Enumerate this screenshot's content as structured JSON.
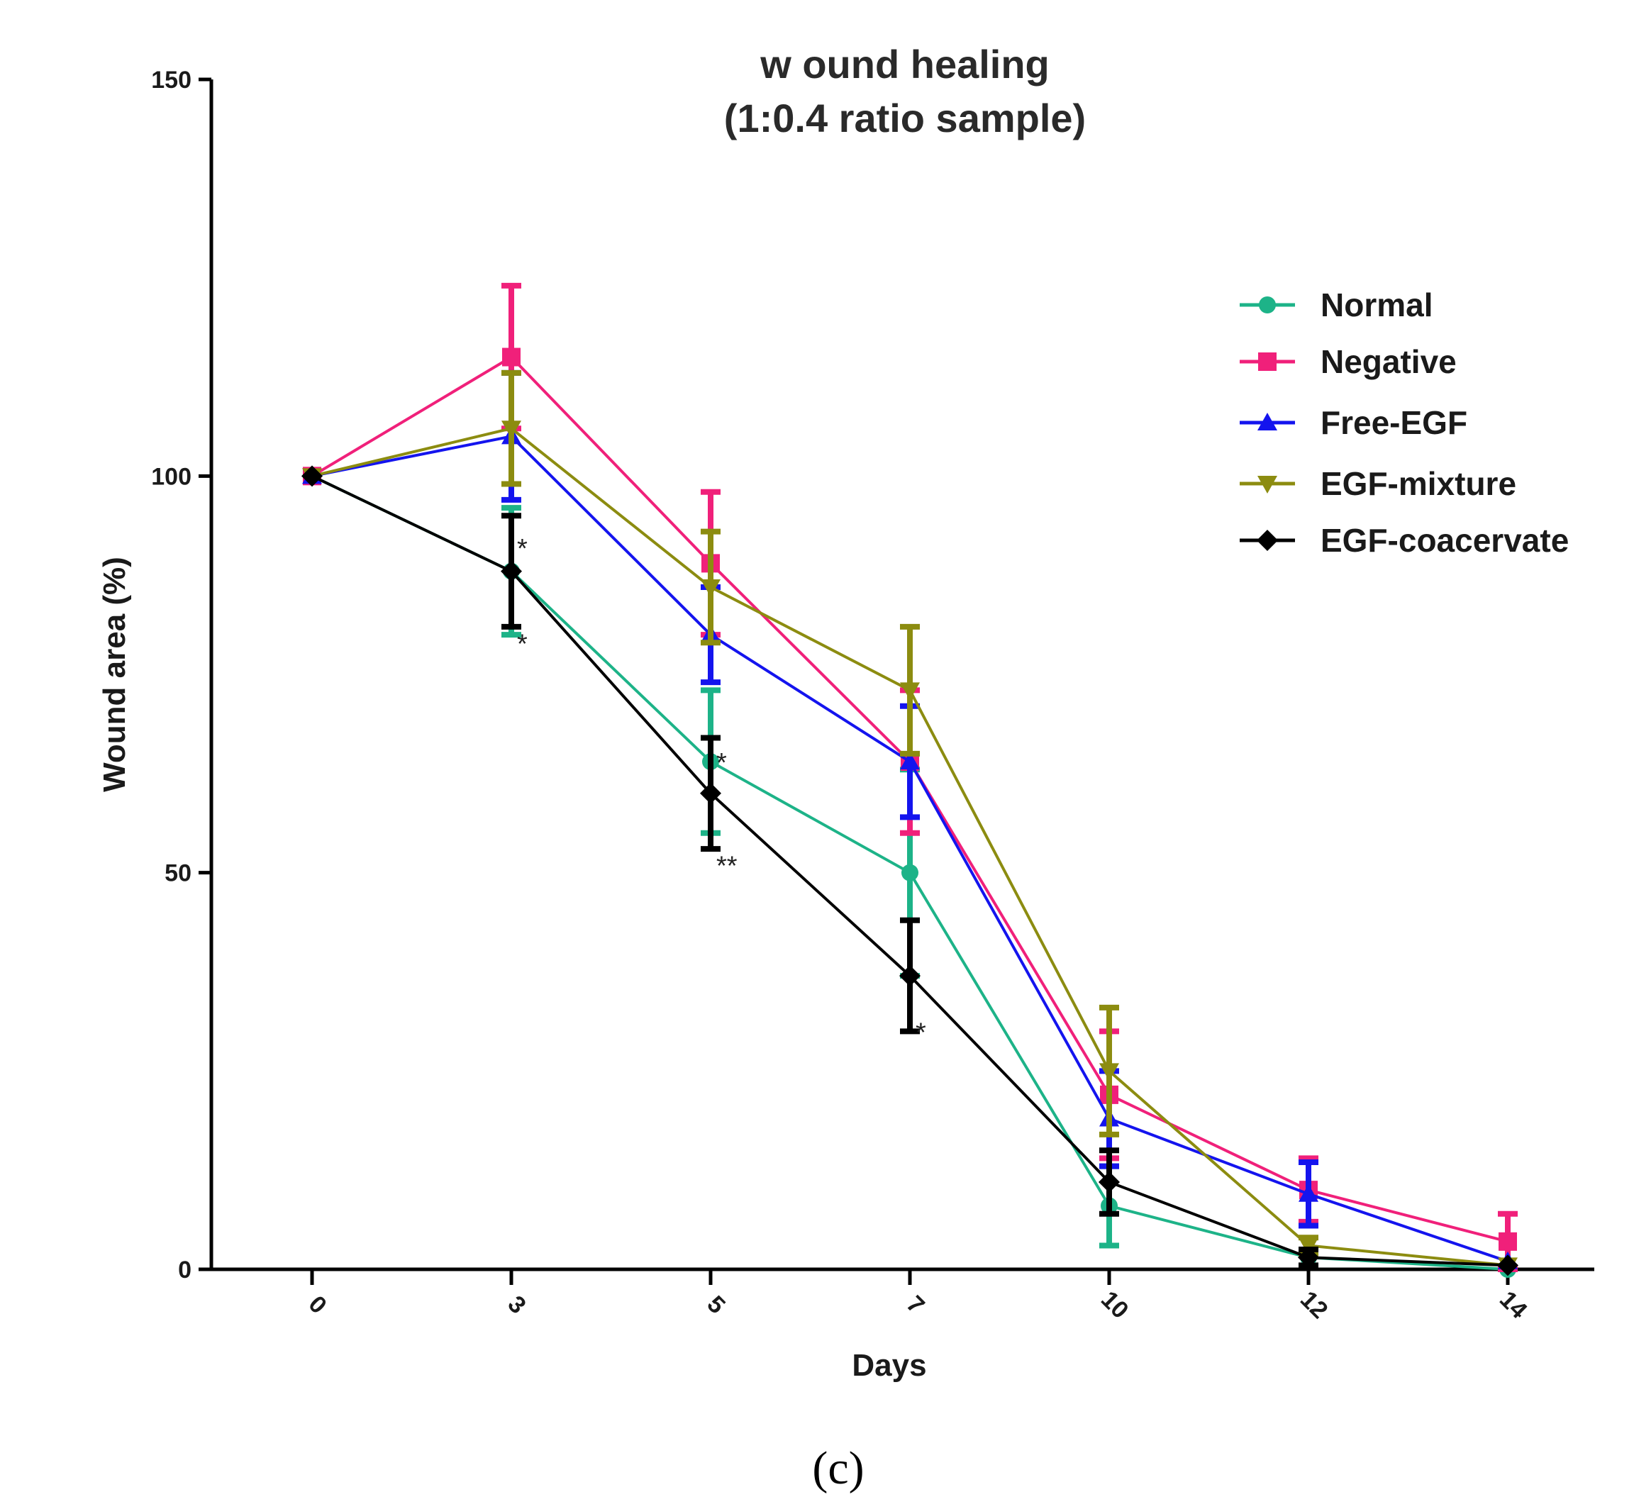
{
  "chart_data": {
    "type": "line",
    "title_line1": "w ound healing",
    "title_line2": "(1:0.4 ratio sample)",
    "xlabel": "Days",
    "ylabel": "Wound area (%)",
    "caption": "(c)",
    "categories": [
      "0",
      "3",
      "5",
      "7",
      "10",
      "12",
      "14"
    ],
    "ylim": [
      0,
      150
    ],
    "yticks": [
      "0",
      "50",
      "100",
      "150"
    ],
    "legend_position": "top-right",
    "series": [
      {
        "name": "Normal",
        "color": "#1db388",
        "marker": "circle",
        "values": [
          100,
          88,
          64,
          50,
          8,
          1.5,
          0
        ],
        "errors": [
          0,
          8,
          9,
          13,
          5,
          0.5,
          0.5
        ]
      },
      {
        "name": "Negative",
        "color": "#f0207a",
        "marker": "square",
        "values": [
          100,
          115,
          89,
          64,
          22,
          10,
          3.5
        ],
        "errors": [
          0,
          9,
          9,
          9,
          8,
          4,
          3.5
        ]
      },
      {
        "name": "Free-EGF",
        "color": "#1414ee",
        "marker": "triangle-up",
        "values": [
          100,
          105,
          80,
          64,
          19,
          9.5,
          1
        ],
        "errors": [
          0,
          8,
          6,
          7,
          6,
          4,
          0.5
        ]
      },
      {
        "name": "EGF-mixture",
        "color": "#8c8c10",
        "marker": "triangle-down",
        "values": [
          100,
          106,
          86,
          73,
          25,
          3,
          0.5
        ],
        "errors": [
          0,
          7,
          7,
          8,
          8,
          1,
          0.5
        ]
      },
      {
        "name": "EGF-coacervate",
        "color": "#000000",
        "marker": "diamond",
        "values": [
          100,
          88,
          60,
          37,
          11,
          1.5,
          0.5
        ],
        "errors": [
          0,
          7,
          7,
          7,
          4,
          1,
          0.5
        ]
      }
    ],
    "annotations": [
      {
        "text": "*",
        "x_index": 1,
        "y": 91
      },
      {
        "text": "*",
        "x_index": 1,
        "y": 79
      },
      {
        "text": "*",
        "x_index": 2,
        "y": 64
      },
      {
        "text": "**",
        "x_index": 2,
        "y": 51
      },
      {
        "text": "*",
        "x_index": 3,
        "y": 30
      }
    ]
  }
}
